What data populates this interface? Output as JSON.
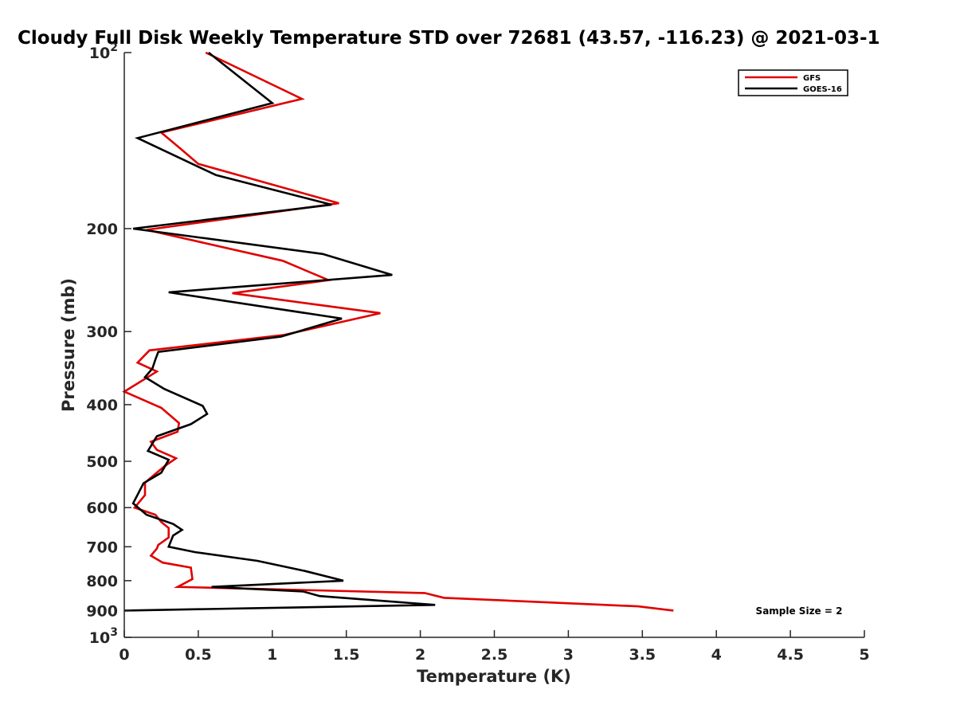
{
  "chart_data": {
    "type": "line",
    "title": "Cloudy Full Disk Weekly Temperature STD over 72681 (43.57, -116.23) @ 2021-03-1",
    "xlabel": "Temperature (K)",
    "ylabel": "Pressure (mb)",
    "xlim": [
      0,
      5
    ],
    "ylim": [
      1000,
      100
    ],
    "y_scale": "log",
    "y_reversed": true,
    "grid": false,
    "legend_position": "top-right",
    "x_ticks": [
      {
        "value": 0,
        "label": "0"
      },
      {
        "value": 0.5,
        "label": "0.5"
      },
      {
        "value": 1,
        "label": "1"
      },
      {
        "value": 1.5,
        "label": "1.5"
      },
      {
        "value": 2,
        "label": "2"
      },
      {
        "value": 2.5,
        "label": "2.5"
      },
      {
        "value": 3,
        "label": "3"
      },
      {
        "value": 3.5,
        "label": "3.5"
      },
      {
        "value": 4,
        "label": "4"
      },
      {
        "value": 4.5,
        "label": "4.5"
      },
      {
        "value": 5,
        "label": "5"
      }
    ],
    "y_ticks": [
      {
        "value": 100,
        "label": "10",
        "sup": "2"
      },
      {
        "value": 200,
        "label": "200",
        "sup": ""
      },
      {
        "value": 300,
        "label": "300",
        "sup": ""
      },
      {
        "value": 400,
        "label": "400",
        "sup": ""
      },
      {
        "value": 500,
        "label": "500",
        "sup": ""
      },
      {
        "value": 600,
        "label": "600",
        "sup": ""
      },
      {
        "value": 700,
        "label": "700",
        "sup": ""
      },
      {
        "value": 800,
        "label": "800",
        "sup": ""
      },
      {
        "value": 900,
        "label": "900",
        "sup": ""
      },
      {
        "value": 1000,
        "label": "10",
        "sup": "3"
      }
    ],
    "series": [
      {
        "name": "GFS",
        "color": "#e00000",
        "points": [
          [
            0.55,
            100
          ],
          [
            1.2,
            120
          ],
          [
            0.25,
            137
          ],
          [
            0.38,
            146
          ],
          [
            0.5,
            155
          ],
          [
            1.45,
            181
          ],
          [
            0.15,
            201
          ],
          [
            1.07,
            227
          ],
          [
            1.38,
            245
          ],
          [
            0.73,
            258
          ],
          [
            1.73,
            279
          ],
          [
            1.08,
            304
          ],
          [
            0.17,
            323
          ],
          [
            0.09,
            339
          ],
          [
            0.22,
            351
          ],
          [
            0.0,
            380
          ],
          [
            0.25,
            405
          ],
          [
            0.37,
            430
          ],
          [
            0.36,
            445
          ],
          [
            0.18,
            463
          ],
          [
            0.22,
            478
          ],
          [
            0.35,
            494
          ],
          [
            0.27,
            510
          ],
          [
            0.14,
            544
          ],
          [
            0.14,
            571
          ],
          [
            0.07,
            600
          ],
          [
            0.21,
            617
          ],
          [
            0.25,
            635
          ],
          [
            0.3,
            650
          ],
          [
            0.3,
            675
          ],
          [
            0.23,
            695
          ],
          [
            0.22,
            705
          ],
          [
            0.18,
            725
          ],
          [
            0.26,
            745
          ],
          [
            0.45,
            760
          ],
          [
            0.46,
            795
          ],
          [
            0.36,
            820
          ],
          [
            2.03,
            840
          ],
          [
            2.16,
            856
          ],
          [
            3.47,
            885
          ],
          [
            3.71,
            900
          ]
        ]
      },
      {
        "name": "GOES-16",
        "color": "#000000",
        "points": [
          [
            0.57,
            100
          ],
          [
            1.0,
            122
          ],
          [
            0.09,
            140
          ],
          [
            0.62,
            162
          ],
          [
            1.4,
            182
          ],
          [
            0.06,
            200
          ],
          [
            1.34,
            221
          ],
          [
            1.81,
            240
          ],
          [
            0.3,
            257
          ],
          [
            1.47,
            285
          ],
          [
            1.06,
            306
          ],
          [
            0.23,
            325
          ],
          [
            0.21,
            335
          ],
          [
            0.19,
            347
          ],
          [
            0.14,
            359
          ],
          [
            0.27,
            376
          ],
          [
            0.53,
            402
          ],
          [
            0.56,
            415
          ],
          [
            0.45,
            432
          ],
          [
            0.22,
            453
          ],
          [
            0.16,
            480
          ],
          [
            0.3,
            497
          ],
          [
            0.25,
            523
          ],
          [
            0.13,
            545
          ],
          [
            0.06,
            590
          ],
          [
            0.15,
            617
          ],
          [
            0.33,
            640
          ],
          [
            0.39,
            655
          ],
          [
            0.33,
            670
          ],
          [
            0.3,
            700
          ],
          [
            0.48,
            715
          ],
          [
            0.9,
            740
          ],
          [
            1.22,
            770
          ],
          [
            1.48,
            800
          ],
          [
            0.59,
            820
          ],
          [
            1.21,
            835
          ],
          [
            1.32,
            850
          ],
          [
            2.1,
            880
          ],
          [
            0.0,
            900
          ]
        ]
      }
    ],
    "annotation": "Sample Size = 2"
  }
}
